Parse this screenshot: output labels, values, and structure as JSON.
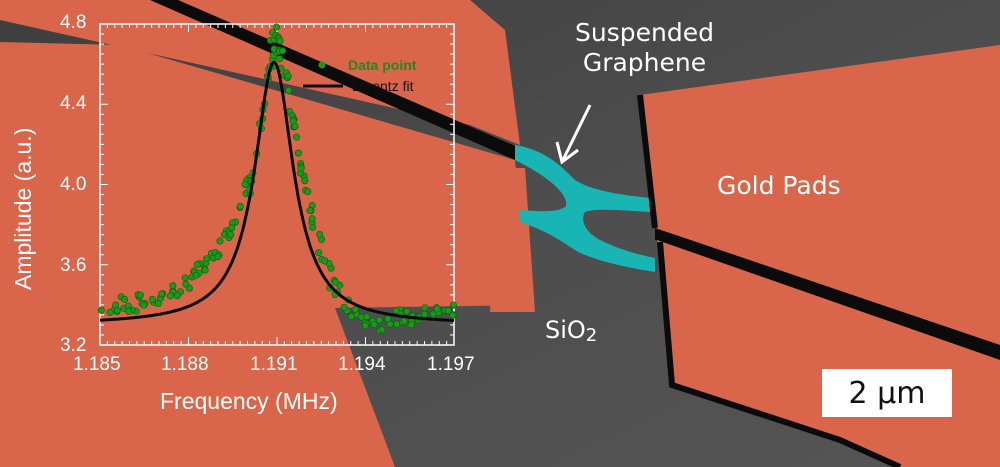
{
  "annotations": {
    "suspended_graphene": [
      "Suspended",
      "Graphene"
    ],
    "gold_pads": "Gold Pads",
    "sio2_main": "SiO",
    "sio2_sub": "2",
    "scale_bar": "2 μm"
  },
  "colors": {
    "gold_pad": "#d9654a",
    "graphene": "#19b5b5",
    "substrate": "#4a4a4a",
    "data_point": "#1a9a1a",
    "fit_line": "#0a0a0a",
    "axis": "#ffffff"
  },
  "chart_data": {
    "type": "scatter",
    "title": "",
    "xlabel": "Frequency (MHz)",
    "ylabel": "Amplitude (a.u.)",
    "xlim": [
      1.185,
      1.197
    ],
    "ylim": [
      3.2,
      4.8
    ],
    "x_ticks": [
      "1.185",
      "1.188",
      "1.191",
      "1.194",
      "1.197"
    ],
    "y_ticks": [
      "3.2",
      "3.6",
      "4.0",
      "4.4",
      "4.8"
    ],
    "grid": false,
    "legend": {
      "position": "upper right",
      "entries": [
        "Data point",
        "Lorentz fit"
      ]
    },
    "series": [
      {
        "name": "Data point",
        "kind": "scatter",
        "color": "#1a9a1a",
        "x": [
          1.185,
          1.1855,
          1.186,
          1.1865,
          1.187,
          1.1875,
          1.188,
          1.1885,
          1.1888,
          1.1892,
          1.1896,
          1.19,
          1.1903,
          1.1905,
          1.1907,
          1.1909,
          1.191,
          1.1912,
          1.1914,
          1.1916,
          1.1918,
          1.192,
          1.1923,
          1.1926,
          1.193,
          1.1935,
          1.194,
          1.1945,
          1.195,
          1.1955,
          1.196,
          1.1965,
          1.197
        ],
        "y": [
          3.38,
          3.4,
          3.39,
          3.42,
          3.44,
          3.47,
          3.52,
          3.58,
          3.63,
          3.72,
          3.85,
          4.02,
          4.18,
          4.32,
          4.52,
          4.68,
          4.74,
          4.6,
          4.48,
          4.3,
          4.12,
          3.95,
          3.78,
          3.62,
          3.48,
          3.38,
          3.33,
          3.31,
          3.34,
          3.33,
          3.35,
          3.36,
          3.37
        ]
      },
      {
        "name": "Lorentz fit",
        "kind": "line",
        "color": "#0a0a0a",
        "f0": 1.1909,
        "fwhm": 0.0016,
        "baseline": 3.3,
        "peak": 4.61
      }
    ]
  }
}
